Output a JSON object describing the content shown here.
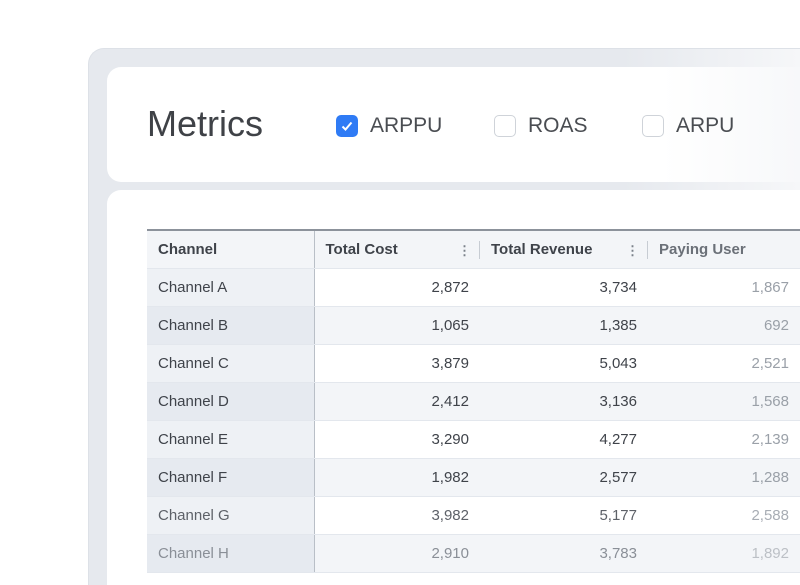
{
  "header": {
    "title": "Metrics",
    "checkboxes": [
      {
        "label": "ARPPU",
        "checked": true
      },
      {
        "label": "ROAS",
        "checked": false
      },
      {
        "label": "ARPU",
        "checked": false
      }
    ]
  },
  "accent": "#2f7bf5",
  "table": {
    "columns": [
      "Channel",
      "Total Cost",
      "Total Revenue",
      "Paying User"
    ],
    "rows": [
      [
        "Channel A",
        "2,872",
        "3,734",
        "1,867"
      ],
      [
        "Channel B",
        "1,065",
        "1,385",
        "692"
      ],
      [
        "Channel C",
        "3,879",
        "5,043",
        "2,521"
      ],
      [
        "Channel D",
        "2,412",
        "3,136",
        "1,568"
      ],
      [
        "Channel E",
        "3,290",
        "4,277",
        "2,139"
      ],
      [
        "Channel F",
        "1,982",
        "2,577",
        "1,288"
      ],
      [
        "Channel G",
        "3,982",
        "5,177",
        "2,588"
      ],
      [
        "Channel H",
        "2,910",
        "3,783",
        "1,892"
      ]
    ]
  }
}
